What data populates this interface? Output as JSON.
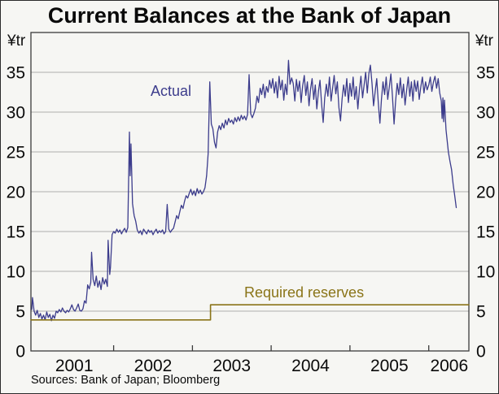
{
  "title": "Current Balances at the Bank of Japan",
  "y_unit_left": "¥tr",
  "y_unit_right": "¥tr",
  "annotations": {
    "actual_label": "Actual",
    "required_label": "Required reserves"
  },
  "sources": "Sources: Bank of Japan; Bloomberg",
  "colors": {
    "actual": "#3c3c8c",
    "required": "#8a7418",
    "grid": "#adadad",
    "axis": "#3b3b3b",
    "background": "#f6f6f3",
    "text": "#0a0a0a"
  },
  "chart_data": {
    "type": "line",
    "title": "Current Balances at the Bank of Japan",
    "xlabel": "",
    "ylabel": "¥tr",
    "ylim": [
      0,
      40
    ],
    "xlim": [
      2000.95,
      2006.51
    ],
    "grid": "horizontal",
    "legend_position": "inline-annotations",
    "y_ticks": [
      0,
      5,
      10,
      15,
      20,
      25,
      30,
      35
    ],
    "x_year_boundary_ticks": [
      2002,
      2003,
      2004,
      2005,
      2006
    ],
    "x_labels": [
      {
        "text": "2001",
        "x": 2001.5
      },
      {
        "text": "2002",
        "x": 2002.5
      },
      {
        "text": "2003",
        "x": 2003.5
      },
      {
        "text": "2004",
        "x": 2004.5
      },
      {
        "text": "2005",
        "x": 2005.5
      },
      {
        "text": "2006",
        "x": 2006.26
      }
    ],
    "series": [
      {
        "name": "Actual",
        "color": "#3c3c8c",
        "width": 1.3,
        "points": [
          [
            2000.96,
            5.2
          ],
          [
            2000.97,
            6.7
          ],
          [
            2000.99,
            5.0
          ],
          [
            2001.01,
            4.5
          ],
          [
            2001.03,
            5.1
          ],
          [
            2001.05,
            4.2
          ],
          [
            2001.07,
            4.7
          ],
          [
            2001.09,
            4.0
          ],
          [
            2001.11,
            4.5
          ],
          [
            2001.13,
            3.9
          ],
          [
            2001.15,
            4.9
          ],
          [
            2001.17,
            4.2
          ],
          [
            2001.19,
            4.6
          ],
          [
            2001.21,
            3.8
          ],
          [
            2001.23,
            4.5
          ],
          [
            2001.25,
            4.1
          ],
          [
            2001.27,
            5.0
          ],
          [
            2001.29,
            4.8
          ],
          [
            2001.31,
            5.2
          ],
          [
            2001.33,
            4.9
          ],
          [
            2001.35,
            5.4
          ],
          [
            2001.37,
            5.0
          ],
          [
            2001.39,
            4.8
          ],
          [
            2001.41,
            5.1
          ],
          [
            2001.43,
            4.9
          ],
          [
            2001.45,
            5.3
          ],
          [
            2001.47,
            5.8
          ],
          [
            2001.49,
            5.2
          ],
          [
            2001.51,
            5.0
          ],
          [
            2001.53,
            5.4
          ],
          [
            2001.55,
            5.9
          ],
          [
            2001.57,
            5.1
          ],
          [
            2001.59,
            5.0
          ],
          [
            2001.61,
            5.3
          ],
          [
            2001.63,
            6.3
          ],
          [
            2001.65,
            6.0
          ],
          [
            2001.67,
            8.3
          ],
          [
            2001.69,
            7.8
          ],
          [
            2001.71,
            8.6
          ],
          [
            2001.72,
            12.4
          ],
          [
            2001.74,
            9.0
          ],
          [
            2001.76,
            8.2
          ],
          [
            2001.78,
            9.4
          ],
          [
            2001.8,
            8.0
          ],
          [
            2001.82,
            8.8
          ],
          [
            2001.84,
            7.7
          ],
          [
            2001.86,
            9.2
          ],
          [
            2001.88,
            8.4
          ],
          [
            2001.9,
            9.0
          ],
          [
            2001.92,
            8.1
          ],
          [
            2001.93,
            13.9
          ],
          [
            2001.95,
            9.6
          ],
          [
            2001.96,
            10.5
          ],
          [
            2001.98,
            14.6
          ],
          [
            2002.0,
            15.0
          ],
          [
            2002.02,
            14.8
          ],
          [
            2002.04,
            15.3
          ],
          [
            2002.06,
            14.9
          ],
          [
            2002.08,
            15.2
          ],
          [
            2002.1,
            14.7
          ],
          [
            2002.12,
            15.1
          ],
          [
            2002.14,
            15.4
          ],
          [
            2002.16,
            14.9
          ],
          [
            2002.18,
            15.5
          ],
          [
            2002.2,
            27.5
          ],
          [
            2002.21,
            22.0
          ],
          [
            2002.22,
            26.0
          ],
          [
            2002.24,
            18.5
          ],
          [
            2002.26,
            17.0
          ],
          [
            2002.28,
            16.3
          ],
          [
            2002.3,
            15.2
          ],
          [
            2002.32,
            14.8
          ],
          [
            2002.34,
            15.1
          ],
          [
            2002.36,
            14.6
          ],
          [
            2002.38,
            15.3
          ],
          [
            2002.4,
            15.0
          ],
          [
            2002.42,
            14.7
          ],
          [
            2002.44,
            15.2
          ],
          [
            2002.46,
            14.9
          ],
          [
            2002.48,
            15.1
          ],
          [
            2002.5,
            14.6
          ],
          [
            2002.52,
            15.0
          ],
          [
            2002.54,
            15.3
          ],
          [
            2002.56,
            14.8
          ],
          [
            2002.58,
            15.1
          ],
          [
            2002.6,
            14.9
          ],
          [
            2002.62,
            15.2
          ],
          [
            2002.64,
            14.7
          ],
          [
            2002.66,
            15.0
          ],
          [
            2002.68,
            18.4
          ],
          [
            2002.7,
            15.3
          ],
          [
            2002.72,
            14.9
          ],
          [
            2002.74,
            15.2
          ],
          [
            2002.76,
            15.4
          ],
          [
            2002.78,
            16.2
          ],
          [
            2002.8,
            17.0
          ],
          [
            2002.82,
            16.6
          ],
          [
            2002.84,
            17.5
          ],
          [
            2002.86,
            18.3
          ],
          [
            2002.88,
            17.9
          ],
          [
            2002.9,
            18.8
          ],
          [
            2002.92,
            19.5
          ],
          [
            2002.94,
            19.2
          ],
          [
            2002.96,
            19.8
          ],
          [
            2002.98,
            20.3
          ],
          [
            2003.0,
            19.6
          ],
          [
            2003.02,
            20.1
          ],
          [
            2003.04,
            19.5
          ],
          [
            2003.06,
            20.4
          ],
          [
            2003.08,
            19.8
          ],
          [
            2003.1,
            20.2
          ],
          [
            2003.12,
            19.7
          ],
          [
            2003.14,
            20.0
          ],
          [
            2003.16,
            20.5
          ],
          [
            2003.18,
            22.0
          ],
          [
            2003.2,
            24.8
          ],
          [
            2003.22,
            33.8
          ],
          [
            2003.24,
            28.5
          ],
          [
            2003.26,
            27.9
          ],
          [
            2003.28,
            26.2
          ],
          [
            2003.3,
            25.5
          ],
          [
            2003.32,
            27.5
          ],
          [
            2003.34,
            28.3
          ],
          [
            2003.36,
            27.8
          ],
          [
            2003.38,
            28.6
          ],
          [
            2003.4,
            28.0
          ],
          [
            2003.42,
            29.0
          ],
          [
            2003.44,
            28.4
          ],
          [
            2003.46,
            29.2
          ],
          [
            2003.48,
            28.7
          ],
          [
            2003.5,
            29.0
          ],
          [
            2003.52,
            28.5
          ],
          [
            2003.54,
            29.3
          ],
          [
            2003.56,
            28.8
          ],
          [
            2003.58,
            29.4
          ],
          [
            2003.6,
            28.9
          ],
          [
            2003.62,
            29.6
          ],
          [
            2003.64,
            29.1
          ],
          [
            2003.66,
            29.5
          ],
          [
            2003.68,
            29.0
          ],
          [
            2003.7,
            29.7
          ],
          [
            2003.72,
            34.7
          ],
          [
            2003.74,
            29.8
          ],
          [
            2003.76,
            29.3
          ],
          [
            2003.78,
            29.8
          ],
          [
            2003.8,
            30.5
          ],
          [
            2003.82,
            32.0
          ],
          [
            2003.84,
            31.2
          ],
          [
            2003.86,
            33.0
          ],
          [
            2003.88,
            32.2
          ],
          [
            2003.9,
            33.5
          ],
          [
            2003.92,
            31.8
          ],
          [
            2003.94,
            33.2
          ],
          [
            2003.96,
            32.5
          ],
          [
            2003.98,
            34.0
          ],
          [
            2004.0,
            33.0
          ],
          [
            2004.02,
            34.2
          ],
          [
            2004.04,
            32.4
          ],
          [
            2004.06,
            33.8
          ],
          [
            2004.08,
            31.8
          ],
          [
            2004.1,
            34.5
          ],
          [
            2004.12,
            32.8
          ],
          [
            2004.14,
            34.0
          ],
          [
            2004.16,
            31.5
          ],
          [
            2004.18,
            33.5
          ],
          [
            2004.2,
            32.2
          ],
          [
            2004.22,
            36.5
          ],
          [
            2004.24,
            33.5
          ],
          [
            2004.26,
            34.3
          ],
          [
            2004.28,
            33.6
          ],
          [
            2004.3,
            31.4
          ],
          [
            2004.32,
            34.1
          ],
          [
            2004.34,
            32.6
          ],
          [
            2004.36,
            33.9
          ],
          [
            2004.38,
            31.2
          ],
          [
            2004.4,
            33.3
          ],
          [
            2004.42,
            34.6
          ],
          [
            2004.44,
            32.1
          ],
          [
            2004.46,
            33.8
          ],
          [
            2004.48,
            30.8
          ],
          [
            2004.5,
            32.9
          ],
          [
            2004.52,
            34.2
          ],
          [
            2004.54,
            31.6
          ],
          [
            2004.56,
            33.4
          ],
          [
            2004.58,
            30.4
          ],
          [
            2004.6,
            32.6
          ],
          [
            2004.62,
            34.0
          ],
          [
            2004.64,
            31.0
          ],
          [
            2004.66,
            28.7
          ],
          [
            2004.68,
            31.8
          ],
          [
            2004.7,
            33.5
          ],
          [
            2004.72,
            32.0
          ],
          [
            2004.74,
            34.4
          ],
          [
            2004.76,
            31.4
          ],
          [
            2004.78,
            33.0
          ],
          [
            2004.8,
            34.6
          ],
          [
            2004.82,
            32.3
          ],
          [
            2004.84,
            33.8
          ],
          [
            2004.86,
            30.6
          ],
          [
            2004.88,
            28.9
          ],
          [
            2004.9,
            31.6
          ],
          [
            2004.92,
            33.4
          ],
          [
            2004.94,
            32.0
          ],
          [
            2004.96,
            34.2
          ],
          [
            2004.98,
            31.2
          ],
          [
            2005.0,
            33.6
          ],
          [
            2005.02,
            32.0
          ],
          [
            2005.04,
            34.4
          ],
          [
            2005.06,
            31.6
          ],
          [
            2005.08,
            33.2
          ],
          [
            2005.1,
            30.4
          ],
          [
            2005.12,
            32.8
          ],
          [
            2005.14,
            34.5
          ],
          [
            2005.16,
            31.8
          ],
          [
            2005.18,
            33.4
          ],
          [
            2005.2,
            35.0
          ],
          [
            2005.22,
            32.4
          ],
          [
            2005.24,
            34.8
          ],
          [
            2005.26,
            35.9
          ],
          [
            2005.28,
            33.6
          ],
          [
            2005.3,
            30.8
          ],
          [
            2005.32,
            32.6
          ],
          [
            2005.34,
            34.2
          ],
          [
            2005.36,
            31.2
          ],
          [
            2005.38,
            28.6
          ],
          [
            2005.4,
            31.6
          ],
          [
            2005.42,
            33.8
          ],
          [
            2005.44,
            32.2
          ],
          [
            2005.46,
            34.4
          ],
          [
            2005.48,
            31.6
          ],
          [
            2005.5,
            33.2
          ],
          [
            2005.52,
            34.8
          ],
          [
            2005.54,
            32.0
          ],
          [
            2005.56,
            28.5
          ],
          [
            2005.58,
            31.4
          ],
          [
            2005.6,
            33.6
          ],
          [
            2005.62,
            32.2
          ],
          [
            2005.64,
            34.3
          ],
          [
            2005.66,
            31.8
          ],
          [
            2005.68,
            33.5
          ],
          [
            2005.7,
            30.9
          ],
          [
            2005.72,
            32.8
          ],
          [
            2005.74,
            34.4
          ],
          [
            2005.76,
            32.0
          ],
          [
            2005.78,
            33.8
          ],
          [
            2005.8,
            31.4
          ],
          [
            2005.82,
            34.0
          ],
          [
            2005.84,
            32.6
          ],
          [
            2005.86,
            33.9
          ],
          [
            2005.88,
            31.6
          ],
          [
            2005.9,
            33.2
          ],
          [
            2005.92,
            34.4
          ],
          [
            2005.94,
            32.4
          ],
          [
            2005.96,
            33.8
          ],
          [
            2005.98,
            32.8
          ],
          [
            2006.0,
            33.4
          ],
          [
            2006.02,
            34.4
          ],
          [
            2006.04,
            32.6
          ],
          [
            2006.06,
            33.8
          ],
          [
            2006.08,
            34.5
          ],
          [
            2006.1,
            33.0
          ],
          [
            2006.12,
            34.2
          ],
          [
            2006.14,
            32.4
          ],
          [
            2006.16,
            31.4
          ],
          [
            2006.17,
            29.2
          ],
          [
            2006.18,
            31.8
          ],
          [
            2006.19,
            28.8
          ],
          [
            2006.2,
            31.5
          ],
          [
            2006.22,
            27.8
          ],
          [
            2006.25,
            25.0
          ],
          [
            2006.27,
            23.8
          ],
          [
            2006.29,
            22.8
          ],
          [
            2006.31,
            21.0
          ],
          [
            2006.33,
            19.5
          ],
          [
            2006.35,
            18.0
          ]
        ]
      },
      {
        "name": "Required reserves",
        "color": "#8a7418",
        "width": 1.6,
        "points": [
          [
            2000.95,
            3.9
          ],
          [
            2003.23,
            3.9
          ],
          [
            2003.23,
            5.8
          ],
          [
            2006.51,
            5.8
          ]
        ]
      }
    ]
  }
}
